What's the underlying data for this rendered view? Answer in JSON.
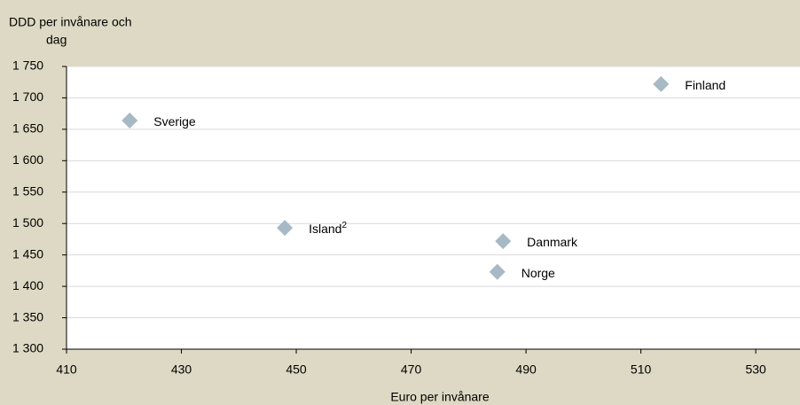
{
  "chart_data": {
    "type": "scatter",
    "ylabel": [
      "DDD per invånare och",
      "dag"
    ],
    "xlabel": "Euro per invånare",
    "labels": [
      "Sverige",
      "Finland",
      "Island",
      "Danmark",
      "Norge"
    ],
    "label_notes": [
      null,
      null,
      "2",
      null,
      null
    ],
    "x": [
      421,
      513.5,
      448,
      486,
      485
    ],
    "values": [
      1664,
      1722,
      1493,
      1472,
      1423
    ],
    "color": "#a7b9c5",
    "xlim": [
      410,
      537.7
    ],
    "xticks": [
      410,
      430,
      450,
      470,
      490,
      510,
      530
    ],
    "ylim": [
      1300,
      1750
    ],
    "yticks": [
      {
        "value": 1300,
        "label": "1 300"
      },
      {
        "value": 1350,
        "label": "1 350"
      },
      {
        "value": 1400,
        "label": "1 400"
      },
      {
        "value": 1450,
        "label": "1 450"
      },
      {
        "value": 1500,
        "label": "1 500"
      },
      {
        "value": 1550,
        "label": "1 550"
      },
      {
        "value": 1600,
        "label": "1 600"
      },
      {
        "value": 1650,
        "label": "1 650"
      },
      {
        "value": 1700,
        "label": "1 700"
      },
      {
        "value": 1750,
        "label": "1 750"
      }
    ],
    "grid": true
  }
}
